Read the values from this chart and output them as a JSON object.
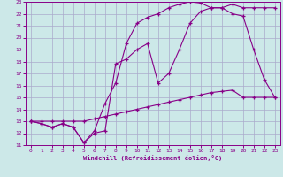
{
  "xlabel": "Windchill (Refroidissement éolien,°C)",
  "bg_color": "#cce8e8",
  "grid_color": "#aaaacc",
  "line_color": "#880088",
  "xlim": [
    -0.5,
    23.5
  ],
  "ylim": [
    11,
    23
  ],
  "xticks": [
    0,
    1,
    2,
    3,
    4,
    5,
    6,
    7,
    8,
    9,
    10,
    11,
    12,
    13,
    14,
    15,
    16,
    17,
    18,
    19,
    20,
    21,
    22,
    23
  ],
  "yticks": [
    11,
    12,
    13,
    14,
    15,
    16,
    17,
    18,
    19,
    20,
    21,
    22,
    23
  ],
  "line1_x": [
    0,
    1,
    2,
    3,
    4,
    5,
    6,
    7,
    8,
    9,
    10,
    11,
    12,
    13,
    14,
    15,
    16,
    17,
    18,
    19,
    20,
    21,
    22,
    23
  ],
  "line1_y": [
    13,
    12.8,
    12.5,
    12.8,
    12.5,
    11.2,
    12.2,
    14.5,
    16.2,
    19.5,
    21.2,
    21.7,
    22.0,
    22.5,
    22.8,
    23.0,
    22.9,
    22.5,
    22.5,
    22.8,
    22.5,
    22.5,
    22.5,
    22.5
  ],
  "line2_x": [
    0,
    1,
    2,
    3,
    4,
    5,
    6,
    7,
    8,
    9,
    10,
    11,
    12,
    13,
    14,
    15,
    16,
    17,
    18,
    19,
    20,
    21,
    22,
    23
  ],
  "line2_y": [
    13,
    13,
    13,
    13,
    13,
    13,
    13.2,
    13.4,
    13.6,
    13.8,
    14.0,
    14.2,
    14.4,
    14.6,
    14.8,
    15.0,
    15.2,
    15.4,
    15.5,
    15.6,
    15.0,
    15.0,
    15.0,
    15.0
  ],
  "line3_x": [
    0,
    1,
    2,
    3,
    4,
    5,
    6,
    7,
    8,
    9,
    10,
    11,
    12,
    13,
    14,
    15,
    16,
    17,
    18,
    19,
    20,
    21,
    22,
    23
  ],
  "line3_y": [
    13,
    12.8,
    12.5,
    12.8,
    12.5,
    11.2,
    12.0,
    12.2,
    17.8,
    18.2,
    19.0,
    19.5,
    16.2,
    17.0,
    19.0,
    21.2,
    22.2,
    22.5,
    22.5,
    22.0,
    21.8,
    19.0,
    16.5,
    15.0
  ]
}
